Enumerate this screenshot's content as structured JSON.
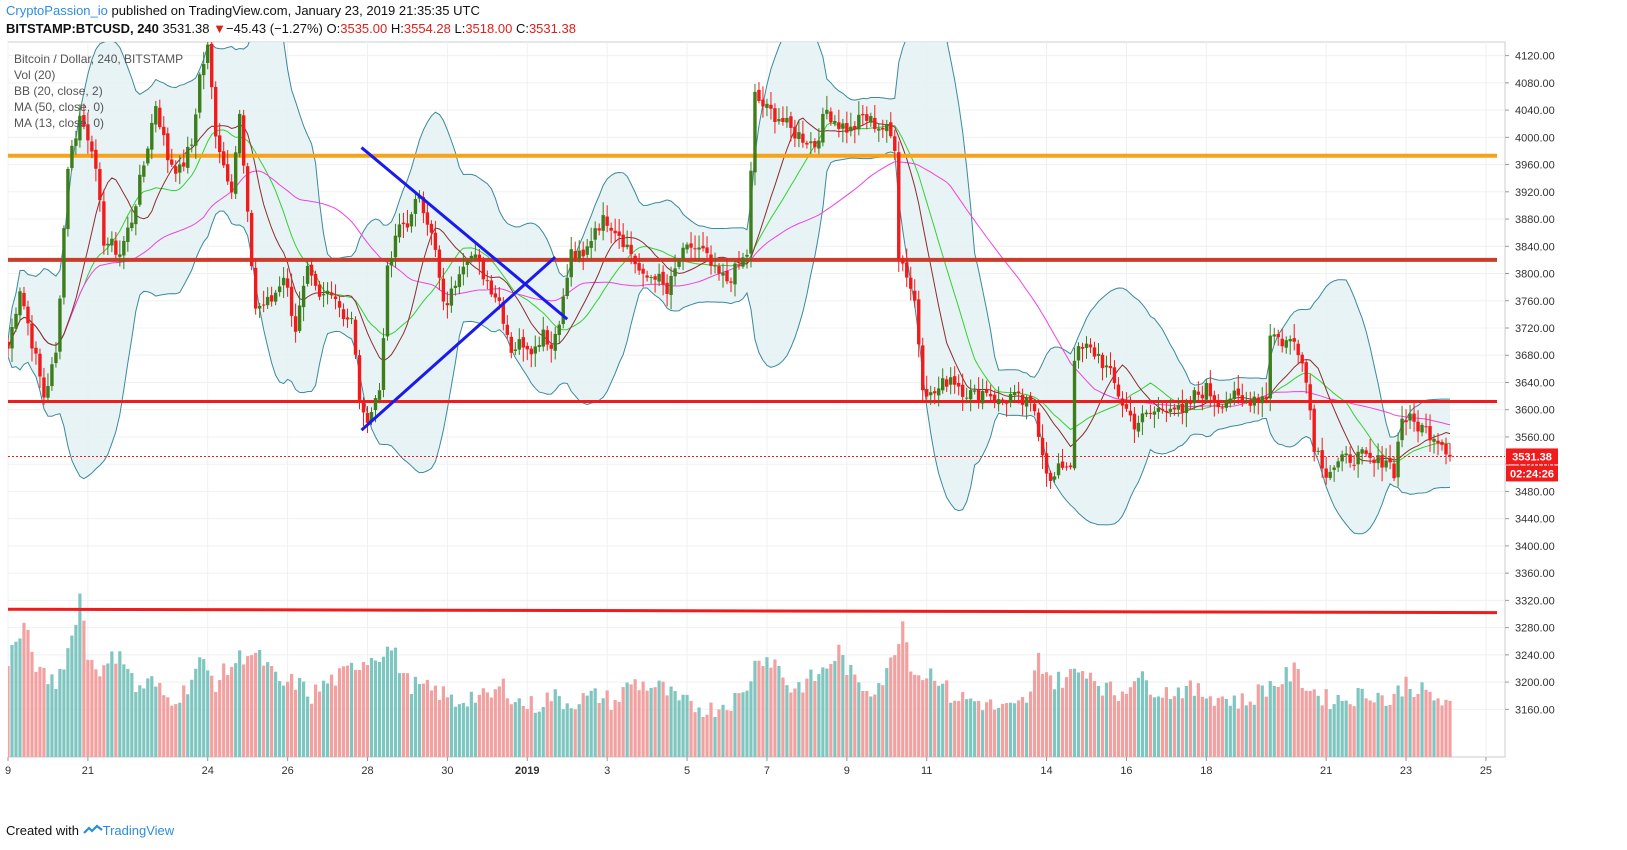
{
  "header": {
    "author": "CryptoPassion_io",
    "published_text": " published on TradingView.com, January 23, 2019 21:35:35 UTC"
  },
  "ohlc_bar": {
    "symbol": "BITSTAMP:BTCUSD, 240",
    "last": "3531.38",
    "arrow": "▼",
    "change": "−45.43 (−1.27%)",
    "o_label": "O:",
    "o": "3535.00",
    "h_label": "H:",
    "h": "3554.28",
    "l_label": "L:",
    "l": "3518.00",
    "c_label": "C:",
    "c": "3531.38"
  },
  "footer": {
    "prefix": "Created with",
    "brand": "TradingView"
  },
  "colors": {
    "up": "#3d7d1b",
    "down": "#f21a1a",
    "bb": "#3a8a9a",
    "bb_fill": "#e4f1f3",
    "ma50": "#f042e0",
    "ma13": "#8b2e2e",
    "basis": "#35d033",
    "orange": "#f7a21b",
    "brown": "#c93d2a",
    "red": "#f21a1a",
    "blue": "#1a1aee",
    "vol_up": "#7fc6c0",
    "vol_down": "#f2a0a0",
    "grid": "#eef0f3",
    "axis_text": "#333333"
  },
  "chart_data": {
    "type": "candlestick",
    "title": "Bitcoin / Dollar, 240, BITSTAMP",
    "legend": [
      "Bitcoin / Dollar, 240, BITSTAMP",
      "Vol (20)",
      "BB (20, close, 2)",
      "MA (50, close, 0)",
      "MA (13, close, 0)"
    ],
    "ylim": [
      3090,
      4140
    ],
    "y_ticks": [
      "4120.00",
      "4080.00",
      "4040.00",
      "4000.00",
      "3960.00",
      "3920.00",
      "3880.00",
      "3840.00",
      "3800.00",
      "3760.00",
      "3720.00",
      "3680.00",
      "3640.00",
      "3600.00",
      "3560.00",
      "3520.00",
      "3480.00",
      "3440.00",
      "3400.00",
      "3360.00",
      "3320.00",
      "3280.00",
      "3240.00",
      "3200.00",
      "3160.00"
    ],
    "x_ticks": [
      {
        "label": "9",
        "i": 0
      },
      {
        "label": "21",
        "i": 20
      },
      {
        "label": "24",
        "i": 50
      },
      {
        "label": "26",
        "i": 70
      },
      {
        "label": "28",
        "i": 90
      },
      {
        "label": "30",
        "i": 110
      },
      {
        "label": "2019",
        "i": 130
      },
      {
        "label": "3",
        "i": 150
      },
      {
        "label": "5",
        "i": 170
      },
      {
        "label": "7",
        "i": 190
      },
      {
        "label": "9",
        "i": 210
      },
      {
        "label": "11",
        "i": 230
      },
      {
        "label": "14",
        "i": 260
      },
      {
        "label": "16",
        "i": 280
      },
      {
        "label": "18",
        "i": 300
      },
      {
        "label": "21",
        "i": 330
      },
      {
        "label": "23",
        "i": 350
      },
      {
        "label": "25",
        "i": 370
      }
    ],
    "last_price_label": "3531.38",
    "countdown_label": "02:24:26",
    "last_price": 3531.38,
    "anchors": [
      [
        0,
        3690
      ],
      [
        3,
        3780
      ],
      [
        6,
        3700
      ],
      [
        9,
        3620
      ],
      [
        12,
        3680
      ],
      [
        15,
        3960
      ],
      [
        18,
        4030
      ],
      [
        21,
        3990
      ],
      [
        24,
        3850
      ],
      [
        28,
        3830
      ],
      [
        31,
        3880
      ],
      [
        34,
        3960
      ],
      [
        37,
        4050
      ],
      [
        40,
        3970
      ],
      [
        43,
        3950
      ],
      [
        46,
        3990
      ],
      [
        48,
        4090
      ],
      [
        50,
        4130
      ],
      [
        52,
        4010
      ],
      [
        54,
        3960
      ],
      [
        56,
        3930
      ],
      [
        58,
        4030
      ],
      [
        60,
        3880
      ],
      [
        62,
        3750
      ],
      [
        66,
        3760
      ],
      [
        69,
        3800
      ],
      [
        72,
        3720
      ],
      [
        75,
        3800
      ],
      [
        78,
        3760
      ],
      [
        81,
        3780
      ],
      [
        84,
        3740
      ],
      [
        86,
        3730
      ],
      [
        88,
        3620
      ],
      [
        89,
        3585
      ],
      [
        91,
        3600
      ],
      [
        93,
        3630
      ],
      [
        95,
        3800
      ],
      [
        98,
        3870
      ],
      [
        101,
        3880
      ],
      [
        103,
        3920
      ],
      [
        105,
        3880
      ],
      [
        107,
        3830
      ],
      [
        109,
        3750
      ],
      [
        111,
        3770
      ],
      [
        113,
        3810
      ],
      [
        115,
        3830
      ],
      [
        117,
        3820
      ],
      [
        119,
        3800
      ],
      [
        121,
        3780
      ],
      [
        123,
        3760
      ],
      [
        126,
        3690
      ],
      [
        129,
        3700
      ],
      [
        132,
        3690
      ],
      [
        134,
        3720
      ],
      [
        136,
        3690
      ],
      [
        139,
        3760
      ],
      [
        141,
        3830
      ],
      [
        144,
        3820
      ],
      [
        147,
        3870
      ],
      [
        150,
        3880
      ],
      [
        153,
        3860
      ],
      [
        156,
        3830
      ],
      [
        159,
        3790
      ],
      [
        162,
        3800
      ],
      [
        165,
        3770
      ],
      [
        168,
        3820
      ],
      [
        171,
        3840
      ],
      [
        174,
        3830
      ],
      [
        177,
        3800
      ],
      [
        180,
        3790
      ],
      [
        183,
        3810
      ],
      [
        185,
        3830
      ],
      [
        187,
        4060
      ],
      [
        190,
        4040
      ],
      [
        193,
        4030
      ],
      [
        196,
        4010
      ],
      [
        199,
        4000
      ],
      [
        202,
        3990
      ],
      [
        205,
        4040
      ],
      [
        208,
        4020
      ],
      [
        211,
        4010
      ],
      [
        214,
        4030
      ],
      [
        217,
        4020
      ],
      [
        220,
        4010
      ],
      [
        222,
        3990
      ],
      [
        223,
        3830
      ],
      [
        225,
        3800
      ],
      [
        227,
        3760
      ],
      [
        229,
        3640
      ],
      [
        231,
        3620
      ],
      [
        233,
        3630
      ],
      [
        236,
        3650
      ],
      [
        239,
        3630
      ],
      [
        242,
        3620
      ],
      [
        245,
        3630
      ],
      [
        248,
        3610
      ],
      [
        251,
        3620
      ],
      [
        254,
        3610
      ],
      [
        257,
        3600
      ],
      [
        259,
        3540
      ],
      [
        261,
        3490
      ],
      [
        264,
        3520
      ],
      [
        266,
        3520
      ],
      [
        267,
        3680
      ],
      [
        270,
        3690
      ],
      [
        273,
        3680
      ],
      [
        276,
        3650
      ],
      [
        279,
        3610
      ],
      [
        282,
        3580
      ],
      [
        285,
        3590
      ],
      [
        288,
        3600
      ],
      [
        291,
        3610
      ],
      [
        294,
        3590
      ],
      [
        297,
        3620
      ],
      [
        300,
        3630
      ],
      [
        303,
        3610
      ],
      [
        306,
        3620
      ],
      [
        309,
        3610
      ],
      [
        312,
        3620
      ],
      [
        315,
        3620
      ],
      [
        316,
        3715
      ],
      [
        319,
        3700
      ],
      [
        322,
        3700
      ],
      [
        324,
        3680
      ],
      [
        326,
        3600
      ],
      [
        327,
        3550
      ],
      [
        330,
        3510
      ],
      [
        333,
        3520
      ],
      [
        336,
        3530
      ],
      [
        339,
        3530
      ],
      [
        342,
        3520
      ],
      [
        345,
        3530
      ],
      [
        347,
        3510
      ],
      [
        349,
        3590
      ],
      [
        352,
        3580
      ],
      [
        355,
        3570
      ],
      [
        358,
        3560
      ],
      [
        360,
        3545
      ],
      [
        361,
        3531.38
      ]
    ],
    "volume_anchors": [
      [
        0,
        3235
      ],
      [
        4,
        3280
      ],
      [
        8,
        3210
      ],
      [
        12,
        3200
      ],
      [
        16,
        3265
      ],
      [
        18,
        3330
      ],
      [
        20,
        3240
      ],
      [
        24,
        3215
      ],
      [
        28,
        3250
      ],
      [
        32,
        3190
      ],
      [
        36,
        3200
      ],
      [
        40,
        3175
      ],
      [
        44,
        3185
      ],
      [
        48,
        3230
      ],
      [
        52,
        3200
      ],
      [
        56,
        3225
      ],
      [
        60,
        3245
      ],
      [
        64,
        3230
      ],
      [
        68,
        3195
      ],
      [
        72,
        3200
      ],
      [
        76,
        3180
      ],
      [
        80,
        3200
      ],
      [
        84,
        3210
      ],
      [
        88,
        3230
      ],
      [
        92,
        3240
      ],
      [
        96,
        3250
      ],
      [
        100,
        3200
      ],
      [
        104,
        3190
      ],
      [
        108,
        3185
      ],
      [
        112,
        3170
      ],
      [
        116,
        3180
      ],
      [
        120,
        3175
      ],
      [
        124,
        3195
      ],
      [
        128,
        3170
      ],
      [
        132,
        3165
      ],
      [
        136,
        3180
      ],
      [
        140,
        3170
      ],
      [
        144,
        3175
      ],
      [
        148,
        3180
      ],
      [
        152,
        3170
      ],
      [
        156,
        3200
      ],
      [
        160,
        3195
      ],
      [
        164,
        3190
      ],
      [
        168,
        3170
      ],
      [
        172,
        3165
      ],
      [
        176,
        3160
      ],
      [
        180,
        3170
      ],
      [
        184,
        3180
      ],
      [
        188,
        3240
      ],
      [
        192,
        3230
      ],
      [
        196,
        3190
      ],
      [
        200,
        3200
      ],
      [
        204,
        3215
      ],
      [
        208,
        3245
      ],
      [
        212,
        3200
      ],
      [
        216,
        3190
      ],
      [
        220,
        3210
      ],
      [
        222,
        3250
      ],
      [
        224,
        3290
      ],
      [
        226,
        3230
      ],
      [
        228,
        3210
      ],
      [
        232,
        3215
      ],
      [
        236,
        3180
      ],
      [
        240,
        3175
      ],
      [
        244,
        3170
      ],
      [
        248,
        3160
      ],
      [
        252,
        3160
      ],
      [
        256,
        3180
      ],
      [
        258,
        3235
      ],
      [
        262,
        3200
      ],
      [
        266,
        3210
      ],
      [
        270,
        3220
      ],
      [
        274,
        3195
      ],
      [
        278,
        3180
      ],
      [
        282,
        3210
      ],
      [
        286,
        3195
      ],
      [
        290,
        3185
      ],
      [
        294,
        3190
      ],
      [
        298,
        3185
      ],
      [
        302,
        3180
      ],
      [
        306,
        3175
      ],
      [
        310,
        3170
      ],
      [
        314,
        3190
      ],
      [
        318,
        3200
      ],
      [
        322,
        3215
      ],
      [
        326,
        3190
      ],
      [
        330,
        3175
      ],
      [
        334,
        3175
      ],
      [
        338,
        3180
      ],
      [
        342,
        3185
      ],
      [
        346,
        3170
      ],
      [
        350,
        3200
      ],
      [
        354,
        3185
      ],
      [
        358,
        3175
      ],
      [
        361,
        3160
      ]
    ],
    "levels": [
      {
        "name": "resistance-orange",
        "y": 3973,
        "color": "orange",
        "width": 4
      },
      {
        "name": "resistance-brown",
        "y": 3820,
        "color": "brown",
        "width": 4
      },
      {
        "name": "support-red-upper",
        "y": 3612,
        "color": "red",
        "width": 3
      },
      {
        "name": "support-red-lower",
        "y1": 3307,
        "y2": 3302,
        "color": "red",
        "width": 3
      }
    ],
    "trendlines": [
      {
        "name": "falling-trendline",
        "i1": 88.5,
        "p1": 3985,
        "i2": 140,
        "p2": 3733,
        "color": "blue",
        "width": 3
      },
      {
        "name": "rising-trendline",
        "i1": 88.5,
        "p1": 3570,
        "i2": 137,
        "p2": 3824,
        "color": "blue",
        "width": 3
      }
    ]
  }
}
